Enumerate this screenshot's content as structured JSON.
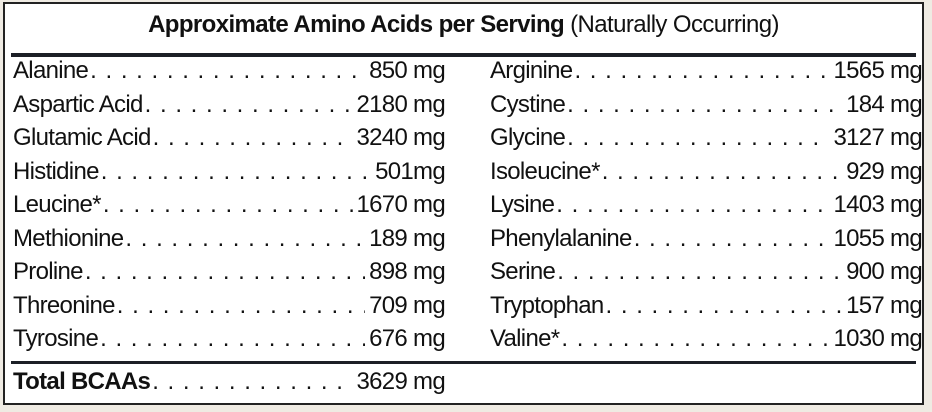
{
  "title": {
    "bold": "Approximate Amino Acids per Serving",
    "regular": "(Naturally Occurring)"
  },
  "left": [
    {
      "name": "Alanine",
      "value": "850 mg"
    },
    {
      "name": "Aspartic Acid",
      "value": "2180 mg"
    },
    {
      "name": "Glutamic Acid",
      "value": "3240 mg"
    },
    {
      "name": "Histidine",
      "value": "501mg"
    },
    {
      "name": "Leucine*",
      "value": "1670 mg"
    },
    {
      "name": "Methionine",
      "value": "189 mg"
    },
    {
      "name": "Proline",
      "value": "898 mg"
    },
    {
      "name": "Threonine",
      "value": "709 mg"
    },
    {
      "name": "Tyrosine",
      "value": "676 mg"
    }
  ],
  "right": [
    {
      "name": "Arginine",
      "value": "1565 mg"
    },
    {
      "name": "Cystine",
      "value": "184 mg"
    },
    {
      "name": "Glycine",
      "value": "3127 mg"
    },
    {
      "name": "Isoleucine*",
      "value": "929 mg"
    },
    {
      "name": "Lysine",
      "value": "1403 mg"
    },
    {
      "name": "Phenylalanine",
      "value": "1055 mg"
    },
    {
      "name": "Serine",
      "value": "900 mg"
    },
    {
      "name": "Tryptophan",
      "value": "157 mg"
    },
    {
      "name": "Valine*",
      "value": "1030 mg"
    }
  ],
  "total": {
    "name": "Total BCAAs",
    "value": "3629 mg"
  }
}
